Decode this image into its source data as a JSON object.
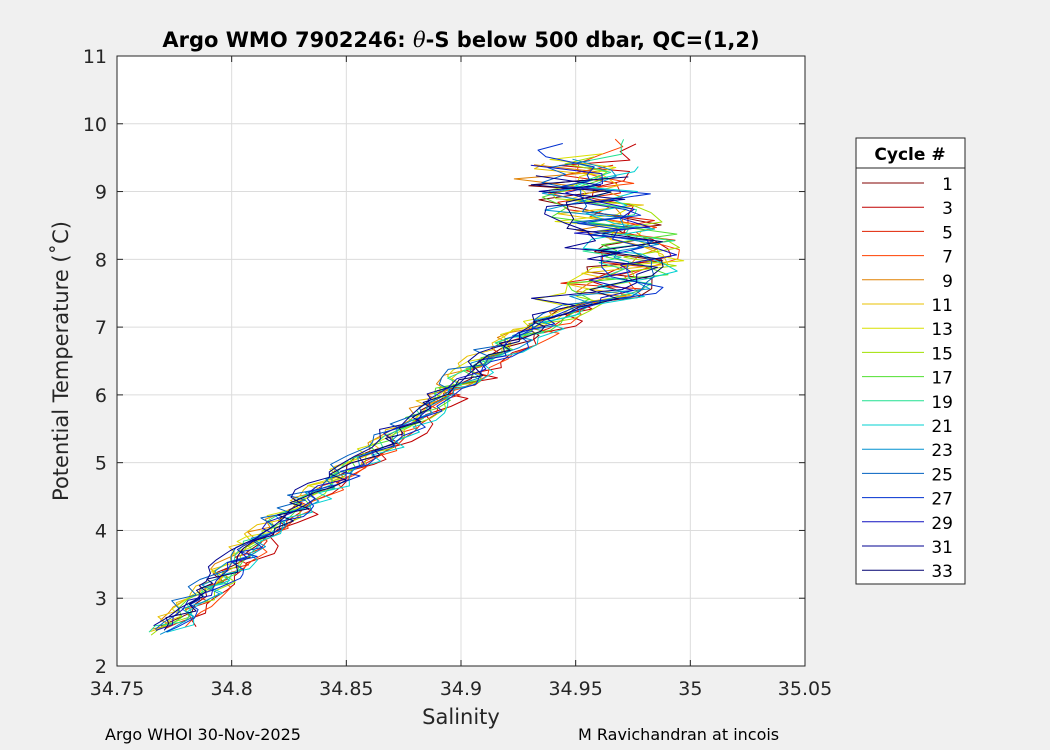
{
  "chart_data": {
    "type": "line",
    "title": "Argo WMO 7902246: θ-S below 500 dbar,  QC=(1,2)",
    "title_theta": "θ",
    "title_prefix": "Argo WMO 7902246: ",
    "title_suffix": "-S below 500 dbar,  QC=(1,2)",
    "xlabel": "Salinity",
    "ylabel": "Potential Temperature (˚C)",
    "xlim": [
      34.75,
      35.05
    ],
    "ylim": [
      2,
      11
    ],
    "xticks": [
      "34.75",
      "34.8",
      "34.85",
      "34.9",
      "34.95",
      "35",
      "35.05"
    ],
    "yticks": [
      "2",
      "3",
      "4",
      "5",
      "6",
      "7",
      "8",
      "9",
      "10",
      "11"
    ],
    "grid": true,
    "legend_title": "Cycle #",
    "legend_position": "right",
    "backbone": {
      "s": [
        34.768,
        34.79,
        34.81,
        34.835,
        34.86,
        34.88,
        34.9,
        34.92,
        34.945,
        34.968,
        34.985,
        34.97,
        34.955,
        34.96
      ],
      "t": [
        2.45,
        3.1,
        3.8,
        4.5,
        5.1,
        5.6,
        6.2,
        6.7,
        7.2,
        7.6,
        7.9,
        8.6,
        9.2,
        9.6
      ]
    },
    "series": [
      {
        "name": "1",
        "color": "#800000"
      },
      {
        "name": "3",
        "color": "#c00000"
      },
      {
        "name": "5",
        "color": "#e02000"
      },
      {
        "name": "7",
        "color": "#ff4000"
      },
      {
        "name": "9",
        "color": "#e08000"
      },
      {
        "name": "11",
        "color": "#e8c000"
      },
      {
        "name": "13",
        "color": "#d8e000"
      },
      {
        "name": "15",
        "color": "#a0e000"
      },
      {
        "name": "17",
        "color": "#50e030"
      },
      {
        "name": "19",
        "color": "#20e090"
      },
      {
        "name": "21",
        "color": "#00d0d0"
      },
      {
        "name": "23",
        "color": "#0090d0"
      },
      {
        "name": "25",
        "color": "#0060c0"
      },
      {
        "name": "27",
        "color": "#0030d0"
      },
      {
        "name": "29",
        "color": "#1010c0"
      },
      {
        "name": "31",
        "color": "#000090"
      },
      {
        "name": "33",
        "color": "#000070"
      }
    ]
  },
  "footer": {
    "left": "Argo WHOI 30-Nov-2025",
    "right": "M Ravichandran at incois"
  }
}
